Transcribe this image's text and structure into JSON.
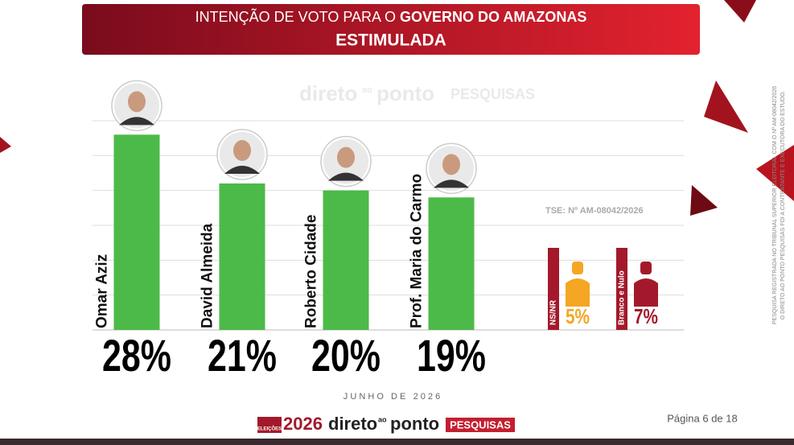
{
  "chart_data": {
    "type": "bar",
    "title": "INTENÇÃO DE VOTO PARA O",
    "title_emphasis": "GOVERNO DO AMAZONAS",
    "subtitle": "ESTIMULADA",
    "categories": [
      "Omar Aziz",
      "David Almeida",
      "Roberto Cidade",
      "Prof. Maria do Carmo"
    ],
    "values": [
      28,
      21,
      20,
      19
    ],
    "value_labels": [
      "28%",
      "21%",
      "20%",
      "19%"
    ],
    "color": "#4cba48",
    "ylim": [
      0,
      30
    ],
    "yticks": [
      0,
      5,
      10,
      15,
      20,
      25,
      30
    ],
    "grid": true,
    "others": [
      {
        "name": "NS/NR",
        "value": 5,
        "value_label": "5%",
        "color": "#f5a623"
      },
      {
        "name": "Branco e Nulo",
        "value": 7,
        "value_label": "7%",
        "color": "#a3192b"
      }
    ],
    "registration": "TSE: Nº AM-08042/2026",
    "date": "J U N H O   D E   2 0 2 6",
    "page": "Página 6 de 18",
    "side_note": [
      "PESQUISA REGISTRADA NO TRIBUNAL SUPERIOR ELEITORAL COM O Nº AM-08042/2026",
      "O DIRETO AO PONTO PESQUISAS FOI A CONTRATANTE E EXECUTORA DO ESTUDO."
    ],
    "logo": {
      "election": "ELEIÇÕES",
      "year": "2026",
      "brand": [
        "direto",
        "ao",
        "ponto"
      ],
      "unit": "PESQUISAS"
    }
  }
}
